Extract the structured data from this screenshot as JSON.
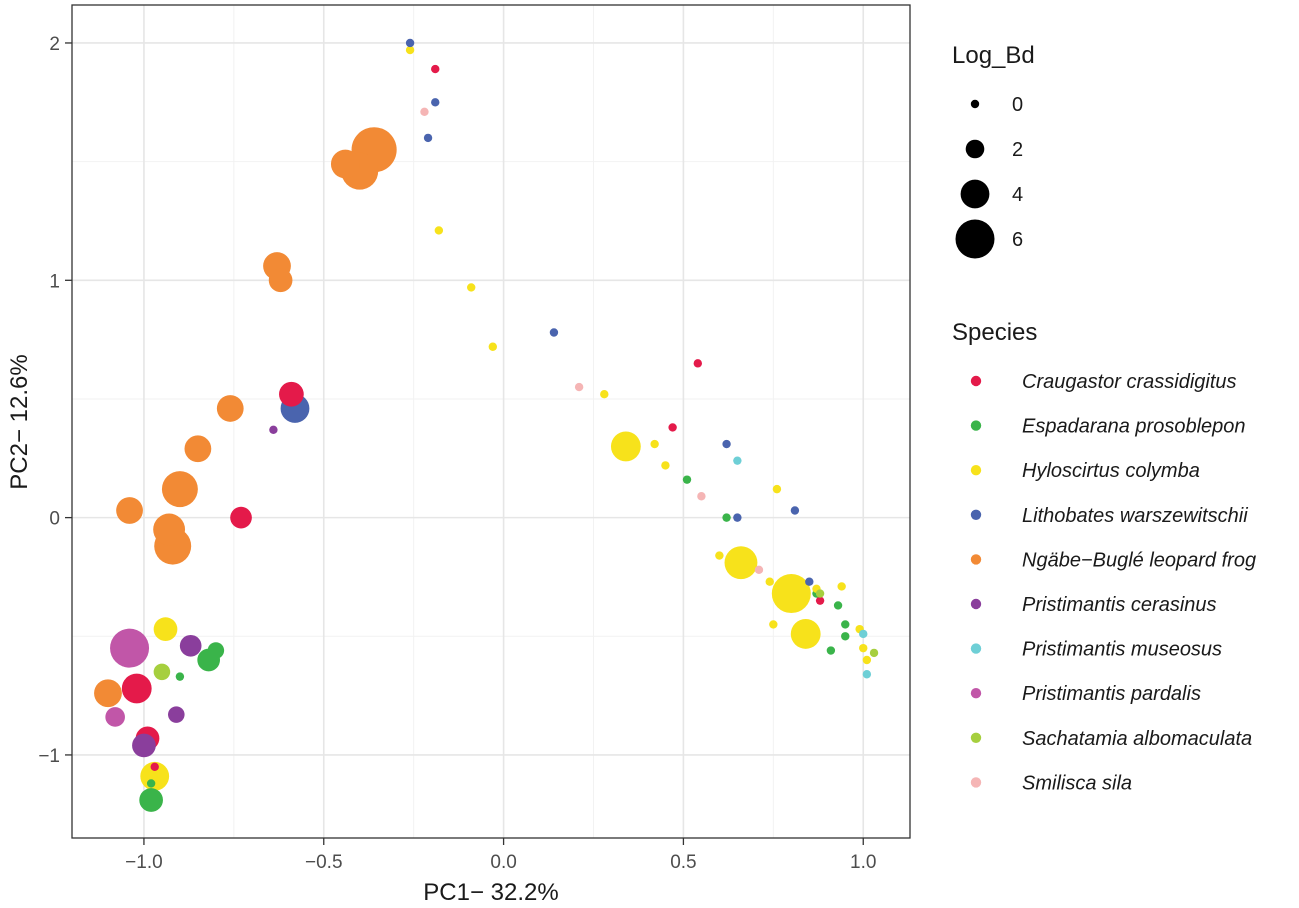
{
  "chart_data": {
    "type": "scatter",
    "title": "",
    "xlabel": "PC1− 32.2%",
    "ylabel": "PC2− 12.6%",
    "xlim": [
      -1.2,
      1.13
    ],
    "ylim": [
      -1.35,
      2.16
    ],
    "x_ticks": [
      -1.0,
      -0.5,
      0.0,
      0.5,
      1.0
    ],
    "x_tick_labels": [
      "−1.0",
      "−0.5",
      "0.0",
      "0.5",
      "1.0"
    ],
    "y_ticks": [
      -1,
      0,
      1,
      2
    ],
    "y_tick_labels": [
      "−1",
      "0",
      "1",
      "2"
    ],
    "grid": true,
    "size_legend": {
      "title": "Log_Bd",
      "entries": [
        {
          "label": "0",
          "value": 0
        },
        {
          "label": "2",
          "value": 2
        },
        {
          "label": "4",
          "value": 4
        },
        {
          "label": "6",
          "value": 6
        }
      ]
    },
    "color_legend": {
      "title": "Species",
      "entries": [
        {
          "name": "Craugastor crassidigitus",
          "color": "#e41a4a"
        },
        {
          "name": "Espadarana prosoblepon",
          "color": "#3ab44a"
        },
        {
          "name": "Hyloscirtus colymba",
          "color": "#f7e21b"
        },
        {
          "name": "Lithobates warszewitschii",
          "color": "#4a64ae"
        },
        {
          "name": "Ngäbe−Buglé leopard frog",
          "color": "#f28a35"
        },
        {
          "name": "Pristimantis cerasinus",
          "color": "#8a3e9c"
        },
        {
          "name": "Pristimantis museosus",
          "color": "#6ecfd6"
        },
        {
          "name": "Pristimantis pardalis",
          "color": "#c156a8"
        },
        {
          "name": "Sachatamia albomaculata",
          "color": "#a6cf3e"
        },
        {
          "name": "Smilisca sila",
          "color": "#f5b5b5"
        }
      ]
    },
    "series": [
      {
        "name": "Craugastor crassidigitus",
        "points": [
          {
            "x": -0.19,
            "y": 1.89,
            "logbd": 0
          },
          {
            "x": 0.54,
            "y": 0.65,
            "logbd": 0
          },
          {
            "x": 0.47,
            "y": 0.38,
            "logbd": 0
          },
          {
            "x": -0.59,
            "y": 0.52,
            "logbd": 3.2
          },
          {
            "x": -0.73,
            "y": 0.0,
            "logbd": 2.6
          },
          {
            "x": -1.02,
            "y": -0.72,
            "logbd": 4.2
          },
          {
            "x": -0.99,
            "y": -0.93,
            "logbd": 3.0
          },
          {
            "x": -0.97,
            "y": -1.05,
            "logbd": 0
          },
          {
            "x": 0.88,
            "y": -0.35,
            "logbd": 0
          }
        ]
      },
      {
        "name": "Espadarana prosoblepon",
        "points": [
          {
            "x": 0.51,
            "y": 0.16,
            "logbd": 0
          },
          {
            "x": 0.62,
            "y": 0.0,
            "logbd": 0
          },
          {
            "x": 0.87,
            "y": -0.32,
            "logbd": 0
          },
          {
            "x": 0.93,
            "y": -0.37,
            "logbd": 0
          },
          {
            "x": 0.95,
            "y": -0.45,
            "logbd": 0
          },
          {
            "x": 0.95,
            "y": -0.5,
            "logbd": 0
          },
          {
            "x": 0.91,
            "y": -0.56,
            "logbd": 0
          },
          {
            "x": -0.8,
            "y": -0.56,
            "logbd": 1.6
          },
          {
            "x": -0.82,
            "y": -0.6,
            "logbd": 2.8
          },
          {
            "x": -0.9,
            "y": -0.67,
            "logbd": 0
          },
          {
            "x": -0.98,
            "y": -1.12,
            "logbd": 0
          },
          {
            "x": -0.98,
            "y": -1.19,
            "logbd": 3.0
          }
        ]
      },
      {
        "name": "Hyloscirtus colymba",
        "points": [
          {
            "x": -0.26,
            "y": 1.97,
            "logbd": 0
          },
          {
            "x": -0.18,
            "y": 1.21,
            "logbd": 0
          },
          {
            "x": -0.09,
            "y": 0.97,
            "logbd": 0
          },
          {
            "x": -0.03,
            "y": 0.72,
            "logbd": 0
          },
          {
            "x": 0.28,
            "y": 0.52,
            "logbd": 0
          },
          {
            "x": 0.34,
            "y": 0.3,
            "logbd": 4.2
          },
          {
            "x": 0.42,
            "y": 0.31,
            "logbd": 0
          },
          {
            "x": 0.45,
            "y": 0.22,
            "logbd": 0
          },
          {
            "x": 0.6,
            "y": -0.16,
            "logbd": 0
          },
          {
            "x": 0.66,
            "y": -0.19,
            "logbd": 4.8
          },
          {
            "x": 0.74,
            "y": -0.27,
            "logbd": 0
          },
          {
            "x": 0.75,
            "y": -0.45,
            "logbd": 0
          },
          {
            "x": 0.76,
            "y": 0.12,
            "logbd": 0
          },
          {
            "x": 0.8,
            "y": -0.32,
            "logbd": 6.0
          },
          {
            "x": 0.84,
            "y": -0.49,
            "logbd": 4.2
          },
          {
            "x": 0.87,
            "y": -0.3,
            "logbd": 0
          },
          {
            "x": 0.94,
            "y": -0.29,
            "logbd": 0
          },
          {
            "x": 0.99,
            "y": -0.47,
            "logbd": 0
          },
          {
            "x": 1.0,
            "y": -0.55,
            "logbd": 0
          },
          {
            "x": 1.01,
            "y": -0.6,
            "logbd": 0
          },
          {
            "x": -0.94,
            "y": -0.47,
            "logbd": 3.0
          },
          {
            "x": -0.97,
            "y": -1.09,
            "logbd": 4.0
          }
        ]
      },
      {
        "name": "Lithobates warszewitschii",
        "points": [
          {
            "x": -0.26,
            "y": 2.0,
            "logbd": 0
          },
          {
            "x": -0.19,
            "y": 1.75,
            "logbd": 0
          },
          {
            "x": -0.21,
            "y": 1.6,
            "logbd": 0
          },
          {
            "x": 0.14,
            "y": 0.78,
            "logbd": 0
          },
          {
            "x": 0.62,
            "y": 0.31,
            "logbd": 0
          },
          {
            "x": 0.65,
            "y": 0.0,
            "logbd": 0
          },
          {
            "x": 0.81,
            "y": 0.03,
            "logbd": 0
          },
          {
            "x": 0.85,
            "y": -0.27,
            "logbd": 0
          },
          {
            "x": -0.58,
            "y": 0.46,
            "logbd": 4.0
          }
        ]
      },
      {
        "name": "Ngäbe−Buglé leopard frog",
        "points": [
          {
            "x": -0.44,
            "y": 1.49,
            "logbd": 4.0
          },
          {
            "x": -0.4,
            "y": 1.46,
            "logbd": 5.6
          },
          {
            "x": -0.36,
            "y": 1.55,
            "logbd": 7.2
          },
          {
            "x": -0.63,
            "y": 1.06,
            "logbd": 3.8
          },
          {
            "x": -0.62,
            "y": 1.0,
            "logbd": 3.0
          },
          {
            "x": -0.76,
            "y": 0.46,
            "logbd": 3.6
          },
          {
            "x": -0.85,
            "y": 0.29,
            "logbd": 3.6
          },
          {
            "x": -0.9,
            "y": 0.12,
            "logbd": 5.4
          },
          {
            "x": -1.04,
            "y": 0.03,
            "logbd": 3.6
          },
          {
            "x": -0.93,
            "y": -0.05,
            "logbd": 4.6
          },
          {
            "x": -0.92,
            "y": -0.12,
            "logbd": 5.6
          },
          {
            "x": -1.1,
            "y": -0.74,
            "logbd": 3.8
          }
        ]
      },
      {
        "name": "Pristimantis cerasinus",
        "points": [
          {
            "x": -0.64,
            "y": 0.37,
            "logbd": 0
          },
          {
            "x": -0.87,
            "y": -0.54,
            "logbd": 2.6
          },
          {
            "x": -0.91,
            "y": -0.83,
            "logbd": 1.6
          },
          {
            "x": -1.0,
            "y": -0.96,
            "logbd": 3.0
          }
        ]
      },
      {
        "name": "Pristimantis museosus",
        "points": [
          {
            "x": 0.65,
            "y": 0.24,
            "logbd": 0
          },
          {
            "x": 1.0,
            "y": -0.49,
            "logbd": 0
          },
          {
            "x": 1.01,
            "y": -0.66,
            "logbd": 0
          }
        ]
      },
      {
        "name": "Pristimantis pardalis",
        "points": [
          {
            "x": -1.04,
            "y": -0.55,
            "logbd": 6.0
          },
          {
            "x": -1.08,
            "y": -0.84,
            "logbd": 2.2
          }
        ]
      },
      {
        "name": "Sachatamia albomaculata",
        "points": [
          {
            "x": -0.95,
            "y": -0.65,
            "logbd": 1.6
          },
          {
            "x": 0.88,
            "y": -0.32,
            "logbd": 0
          },
          {
            "x": 1.03,
            "y": -0.57,
            "logbd": 0
          }
        ]
      },
      {
        "name": "Smilisca sila",
        "points": [
          {
            "x": -0.22,
            "y": 1.71,
            "logbd": 0
          },
          {
            "x": 0.21,
            "y": 0.55,
            "logbd": 0
          },
          {
            "x": 0.55,
            "y": 0.09,
            "logbd": 0
          },
          {
            "x": 0.71,
            "y": -0.22,
            "logbd": 0
          }
        ]
      }
    ]
  }
}
